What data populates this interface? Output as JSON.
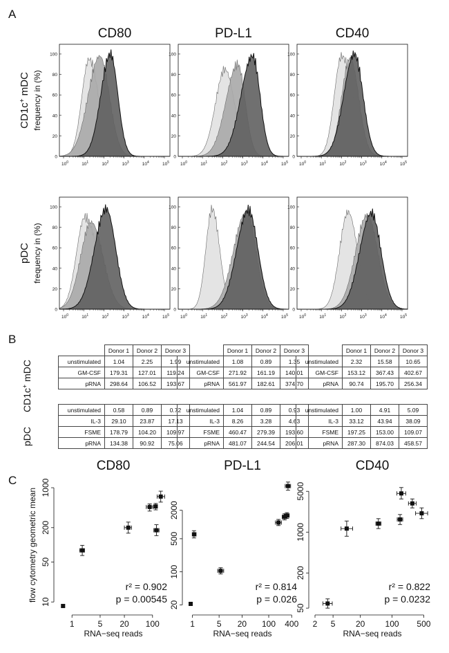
{
  "panel_letters": {
    "a": "A",
    "b": "B",
    "c": "C"
  },
  "markers": [
    "CD80",
    "PD-L1",
    "CD40"
  ],
  "colors": {
    "light": "#e4e4e4",
    "mid": "#a9a9a9",
    "dark": "#616161",
    "line": "#111111"
  },
  "section_a": {
    "row_labels": [
      {
        "cell": "CD1c",
        "sup": "+",
        "rest": " mDC",
        "axis": "frequency in (%)"
      },
      {
        "cell": "pDC",
        "sup": "",
        "rest": "",
        "axis": "frequency in (%)"
      }
    ],
    "y_ticks": [
      "0",
      "20",
      "40",
      "60",
      "80",
      "100"
    ],
    "x_tick_base": "10",
    "x_tick_exps": [
      "0",
      "1",
      "2",
      "3",
      "4",
      "5"
    ]
  },
  "section_b": {
    "row_labels": [
      {
        "cell": "CD1c",
        "sup": "+",
        "rest": " mDC"
      },
      {
        "cell": "pDC",
        "sup": "",
        "rest": ""
      }
    ],
    "headers": [
      "Donor 1",
      "Donor 2",
      "Donor 3"
    ],
    "tables": [
      {
        "mdc": [
          [
            "unstimulated",
            "1.04",
            "2.25",
            "1.99"
          ],
          [
            "GM-CSF",
            "179.31",
            "127.01",
            "119.24"
          ],
          [
            "pRNA",
            "298.64",
            "106.52",
            "193.67"
          ]
        ],
        "pdc": [
          [
            "unstimulated",
            "0.58",
            "0.89",
            "0.72"
          ],
          [
            "IL-3",
            "29.10",
            "23.87",
            "17.13"
          ],
          [
            "FSME",
            "178.79",
            "104.20",
            "109.97"
          ],
          [
            "pRNA",
            "134.38",
            "90.92",
            "75.06"
          ]
        ]
      },
      {
        "mdc": [
          [
            "unstimulated",
            "1.08",
            "0.89",
            "1.35"
          ],
          [
            "GM-CSF",
            "271.92",
            "161.19",
            "140.01"
          ],
          [
            "pRNA",
            "561.97",
            "182.61",
            "374.70"
          ]
        ],
        "pdc": [
          [
            "unstimulated",
            "1.04",
            "0.89",
            "0.93"
          ],
          [
            "IL-3",
            "8.26",
            "3.28",
            "4.63"
          ],
          [
            "FSME",
            "460.47",
            "279.39",
            "193.60"
          ],
          [
            "pRNA",
            "481.07",
            "244.54",
            "206.01"
          ]
        ]
      },
      {
        "mdc": [
          [
            "unstimulated",
            "2.32",
            "15.58",
            "10.65"
          ],
          [
            "GM-CSF",
            "153.12",
            "367.43",
            "402.67"
          ],
          [
            "pRNA",
            "90.74",
            "195.70",
            "256.34"
          ]
        ],
        "pdc": [
          [
            "unstimulated",
            "1.00",
            "4.91",
            "5.09"
          ],
          [
            "IL-3",
            "33.12",
            "43.94",
            "38.09"
          ],
          [
            "FSME",
            "197.25",
            "153.00",
            "109.07"
          ],
          [
            "pRNA",
            "287.30",
            "874.03",
            "458.57"
          ]
        ]
      }
    ]
  },
  "chart_data": [
    {
      "type": "scatter",
      "title": "CD80",
      "xlabel": "RNA−seq reads",
      "ylabel": "flow cytometry geometric mean",
      "xscale": "log",
      "yscale": "log",
      "xlim": [
        0.45,
        250
      ],
      "ylim": [
        7,
        1400
      ],
      "x_ticks": [
        1,
        5,
        20,
        100
      ],
      "y_ticks": [
        10,
        50,
        200,
        1000
      ],
      "points": [
        {
          "x": 0.6,
          "y": 8.5,
          "xerr": [
            0.55,
            0.65
          ],
          "yerr": [
            8.2,
            8.9
          ]
        },
        {
          "x": 1.8,
          "y": 80,
          "xerr": [
            1.55,
            2.05
          ],
          "yerr": [
            65,
            98
          ]
        },
        {
          "x": 25,
          "y": 200,
          "xerr": [
            20,
            30
          ],
          "yerr": [
            160,
            250
          ]
        },
        {
          "x": 85,
          "y": 460,
          "xerr": [
            70,
            102
          ],
          "yerr": [
            390,
            520
          ]
        },
        {
          "x": 120,
          "y": 470,
          "xerr": [
            108,
            132
          ],
          "yerr": [
            410,
            530
          ]
        },
        {
          "x": 160,
          "y": 700,
          "xerr": [
            130,
            200
          ],
          "yerr": [
            560,
            870
          ]
        },
        {
          "x": 125,
          "y": 180,
          "xerr": [
            108,
            145
          ],
          "yerr": [
            145,
            225
          ]
        }
      ],
      "annotation": [
        "r² = 0.902",
        "p = 0.00545"
      ]
    },
    {
      "type": "scatter",
      "title": "PD-L1",
      "xlabel": "RNA−seq reads",
      "ylabel": "",
      "xscale": "log",
      "yscale": "log",
      "xlim": [
        0.7,
        600
      ],
      "ylim": [
        15,
        9000
      ],
      "x_ticks": [
        1,
        5,
        20,
        100,
        400
      ],
      "y_ticks": [
        20,
        100,
        500,
        2000
      ],
      "points": [
        {
          "x": 0.9,
          "y": 21,
          "xerr": [
            0.85,
            0.95
          ],
          "yerr": [
            20,
            22
          ]
        },
        {
          "x": 1.1,
          "y": 620,
          "xerr": [
            1.0,
            1.25
          ],
          "yerr": [
            520,
            740
          ]
        },
        {
          "x": 5.5,
          "y": 105,
          "xerr": [
            4.6,
            6.6
          ],
          "yerr": [
            90,
            122
          ]
        },
        {
          "x": 180,
          "y": 1100,
          "xerr": [
            150,
            215
          ],
          "yerr": [
            950,
            1280
          ]
        },
        {
          "x": 260,
          "y": 1450,
          "xerr": [
            225,
            300
          ],
          "yerr": [
            1250,
            1680
          ]
        },
        {
          "x": 300,
          "y": 1550,
          "xerr": [
            255,
            345
          ],
          "yerr": [
            1350,
            1780
          ]
        },
        {
          "x": 320,
          "y": 6500,
          "xerr": [
            270,
            375
          ],
          "yerr": [
            5300,
            7900
          ]
        }
      ],
      "annotation": [
        "r² = 0.814",
        "p = 0.026"
      ]
    },
    {
      "type": "scatter",
      "title": "CD40",
      "xlabel": "RNA−seq reads",
      "ylabel": "",
      "xscale": "log",
      "yscale": "log",
      "xlim": [
        1.8,
        750
      ],
      "ylim": [
        45,
        8000
      ],
      "x_ticks": [
        2,
        5,
        20,
        100,
        500
      ],
      "y_ticks": [
        50,
        200,
        1000,
        5000
      ],
      "points": [
        {
          "x": 3.8,
          "y": 60,
          "xerr": [
            3.0,
            4.8
          ],
          "yerr": [
            50,
            72
          ]
        },
        {
          "x": 10,
          "y": 1150,
          "xerr": [
            7.5,
            13.5
          ],
          "yerr": [
            850,
            1550
          ]
        },
        {
          "x": 50,
          "y": 1400,
          "xerr": [
            44,
            57
          ],
          "yerr": [
            1150,
            1700
          ]
        },
        {
          "x": 150,
          "y": 1650,
          "xerr": [
            130,
            172
          ],
          "yerr": [
            1350,
            2000
          ]
        },
        {
          "x": 160,
          "y": 4600,
          "xerr": [
            128,
            200
          ],
          "yerr": [
            3700,
            5800
          ]
        },
        {
          "x": 280,
          "y": 3100,
          "xerr": [
            230,
            340
          ],
          "yerr": [
            2600,
            3700
          ]
        },
        {
          "x": 450,
          "y": 2100,
          "xerr": [
            330,
            610
          ],
          "yerr": [
            1700,
            2600
          ]
        }
      ],
      "annotation": [
        "r² = 0.822",
        "p = 0.0232"
      ]
    }
  ]
}
